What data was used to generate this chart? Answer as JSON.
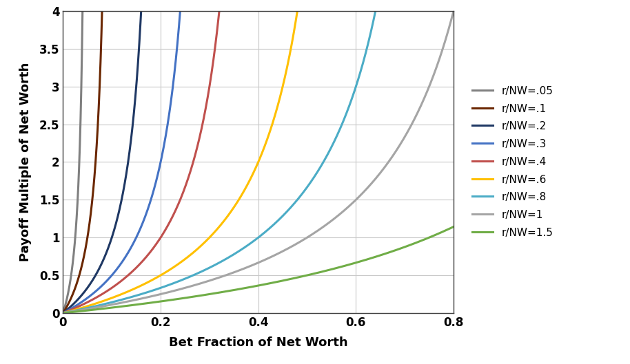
{
  "series": [
    {
      "label": "r/NW=.05",
      "r_nw": 0.05,
      "color": "#808080"
    },
    {
      "label": "r/NW=.1",
      "r_nw": 0.1,
      "color": "#6B2700"
    },
    {
      "label": "r/NW=.2",
      "r_nw": 0.2,
      "color": "#1F3864"
    },
    {
      "label": "r/NW=.3",
      "r_nw": 0.3,
      "color": "#4472C4"
    },
    {
      "label": "r/NW=.4",
      "r_nw": 0.4,
      "color": "#C0504D"
    },
    {
      "label": "r/NW=.6",
      "r_nw": 0.6,
      "color": "#FFC000"
    },
    {
      "label": "r/NW=.8",
      "r_nw": 0.8,
      "color": "#4BACC6"
    },
    {
      "label": "r/NW=1",
      "r_nw": 1.0,
      "color": "#A5A5A5"
    },
    {
      "label": "r/NW=1.5",
      "r_nw": 1.5,
      "color": "#70AD47"
    }
  ],
  "xlabel": "Bet Fraction of Net Worth",
  "ylabel": "Payoff Multiple of Net Worth",
  "xlim": [
    0,
    0.8
  ],
  "ylim": [
    0,
    4.0
  ],
  "xticks": [
    0,
    0.2,
    0.4,
    0.6,
    0.8
  ],
  "yticks": [
    0.0,
    0.5,
    1.0,
    1.5,
    2.0,
    2.5,
    3.0,
    3.5,
    4.0
  ],
  "linewidth": 2.2,
  "background_color": "#FFFFFF",
  "grid_color": "#C8C8C8",
  "figure_width": 9.14,
  "figure_height": 5.29,
  "dpi": 100
}
